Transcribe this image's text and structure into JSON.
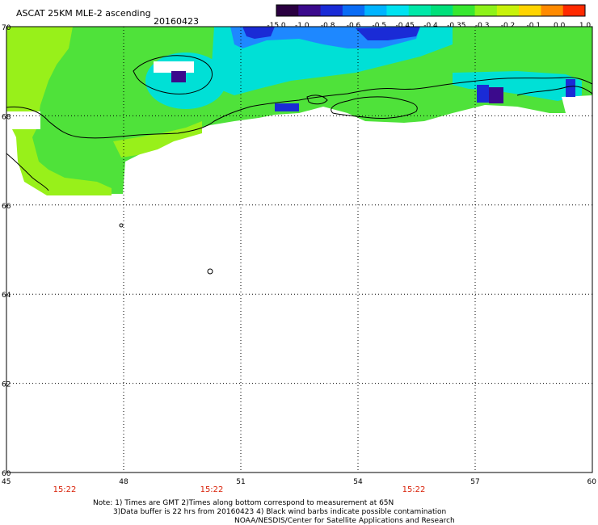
{
  "header": {
    "title": "ASCAT 25KM MLE-2 ascending",
    "date": "20160423"
  },
  "colorbar": {
    "labels": [
      "-15.0",
      "-1.0",
      "-0.8",
      "-0.6",
      "-0.5",
      "-0.45",
      "-0.4",
      "-0.35",
      "-0.3",
      "-0.2",
      "-0.1",
      "0.0",
      "1.0"
    ],
    "colors": [
      "#2a0040",
      "#3b0a8c",
      "#1a2bd6",
      "#0a6cf5",
      "#00b4ff",
      "#00e2f0",
      "#00e8a8",
      "#00e07a",
      "#38e830",
      "#8ef21a",
      "#c8f20a",
      "#ffd400",
      "#ff8a00",
      "#ff2a00"
    ]
  },
  "map": {
    "lon_labels": [
      "45",
      "48",
      "51",
      "54",
      "57",
      "60"
    ],
    "lat_labels": [
      "60",
      "62",
      "64",
      "66",
      "68",
      "70"
    ],
    "time_labels": [
      "15:22",
      "15:22",
      "15:22"
    ],
    "time_color": "#d81e05"
  },
  "footer": {
    "line1": "Note: 1) Times are GMT 2)Times along bottom correspond to measurement at 65N",
    "line2": "3)Data buffer is 22 hrs from 20160423 4) Black wind barbs indicate possible contamination",
    "line3": "NOAA/NESDIS/Center for Satellite Applications and Research"
  }
}
